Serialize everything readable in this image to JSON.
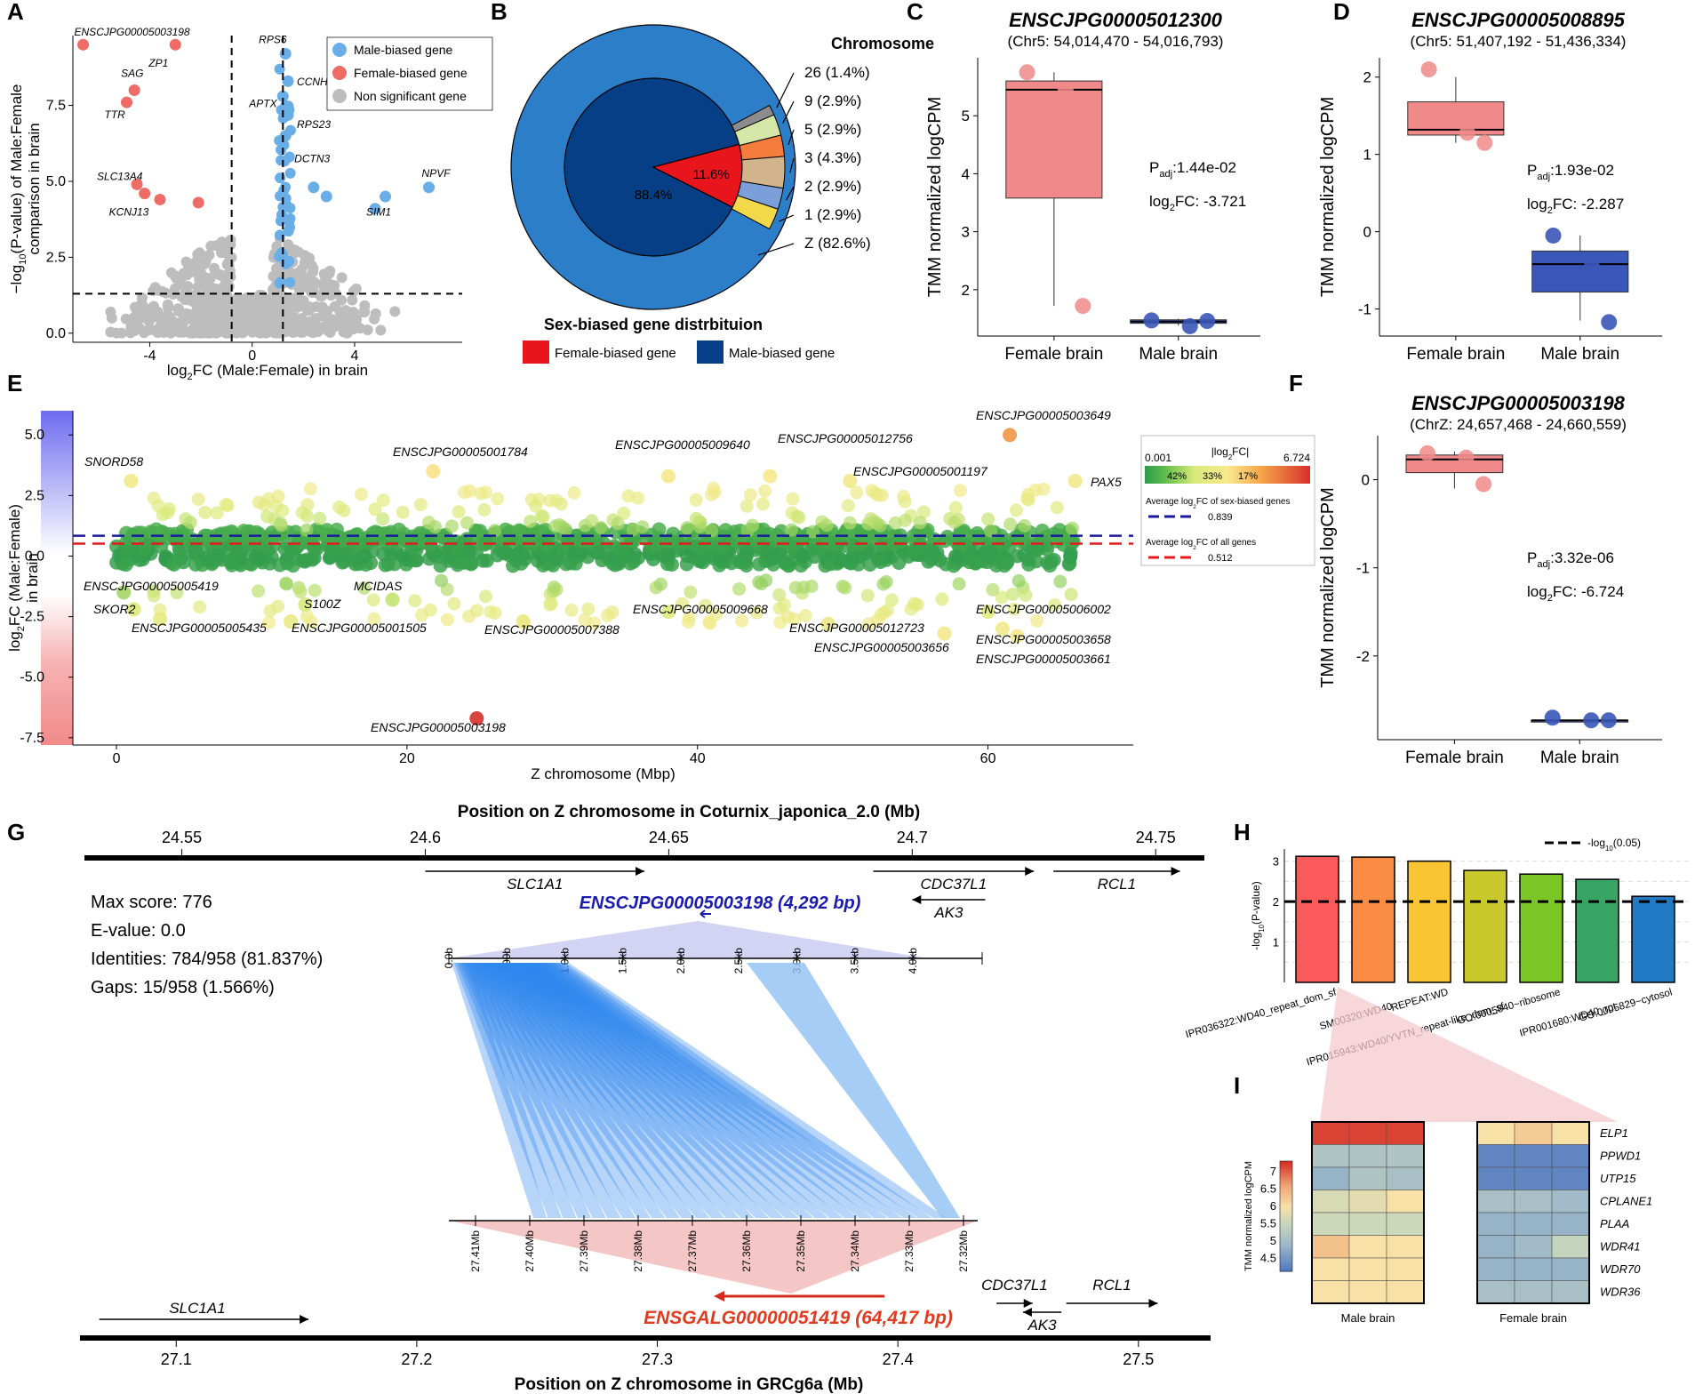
{
  "panel_labels": {
    "A": "A",
    "B": "B",
    "C": "C",
    "D": "D",
    "E": "E",
    "F": "F",
    "G": "G",
    "H": "H",
    "I": "I"
  },
  "chart_data": [
    {
      "panel": "A",
      "type": "scatter",
      "xlabel_parts": [
        "log",
        "2",
        "FC (Male:Female) in brain"
      ],
      "ylabel_line1_parts": [
        "−log",
        "10",
        "(P-value) of Male:Female"
      ],
      "ylabel_line2": "comparison in brain",
      "xlim": [
        -7,
        8.2
      ],
      "ylim": [
        -0.3,
        9.8
      ],
      "x_ticks": [
        -4,
        0,
        4
      ],
      "y_ticks": [
        0.0,
        2.5,
        5.0,
        7.5
      ],
      "y_tick_labels": [
        "0.0",
        "2.5",
        "5.0",
        "7.5"
      ],
      "vlines": [
        -0.8,
        1.2
      ],
      "hline": 1.3,
      "legend": [
        {
          "label": "Male-biased gene",
          "color": "#6aaee8"
        },
        {
          "label": "Female-biased gene",
          "color": "#ee6b66"
        },
        {
          "label": "Non significant gene",
          "color": "#bdbdbd"
        }
      ],
      "labeled_points": [
        {
          "label": "ENSCJPG00005003198",
          "x": -6.6,
          "y": 9.5,
          "group": "female"
        },
        {
          "label": "ZP1",
          "x": -3.0,
          "y": 9.5,
          "group": "female"
        },
        {
          "label": "SAG",
          "x": -4.6,
          "y": 8.0,
          "group": "female"
        },
        {
          "label": "TTR",
          "x": -4.9,
          "y": 7.6,
          "group": "female"
        },
        {
          "label": "SLC13A4",
          "x": -4.5,
          "y": 4.9,
          "group": "female"
        },
        {
          "label": "KCNJ13",
          "x": -4.2,
          "y": 4.6,
          "group": "female"
        },
        {
          "label": "RPS6",
          "x": 1.3,
          "y": 9.2,
          "group": "male"
        },
        {
          "label": "CCNH",
          "x": 1.4,
          "y": 8.3,
          "group": "male"
        },
        {
          "label": "APTX",
          "x": 1.2,
          "y": 7.8,
          "group": "male"
        },
        {
          "label": "RPS23",
          "x": 1.4,
          "y": 7.2,
          "group": "male"
        },
        {
          "label": "DCTN3",
          "x": 1.3,
          "y": 6.5,
          "group": "male"
        },
        {
          "label": "SIM1",
          "x": 4.8,
          "y": 4.1,
          "group": "male"
        },
        {
          "label": "NPVF",
          "x": 6.9,
          "y": 4.8,
          "group": "male"
        }
      ],
      "extra_female_points": [
        {
          "x": -2.1,
          "y": 4.3
        },
        {
          "x": -3.6,
          "y": 4.4
        }
      ],
      "extra_male_points": [
        {
          "x": 2.4,
          "y": 4.8
        },
        {
          "x": 2.9,
          "y": 4.5
        },
        {
          "x": 5.2,
          "y": 4.5
        }
      ]
    },
    {
      "panel": "B",
      "type": "pie",
      "title": "Sex-biased gene distrbituion",
      "legend_title": "Chromosome",
      "inner": [
        {
          "label": "Female-biased gene",
          "percent": 11.6,
          "color": "#e8161c"
        },
        {
          "label": "Male-biased gene",
          "percent": 88.4,
          "color": "#073f86"
        }
      ],
      "inner_labels": [
        "11.6%",
        "88.4%"
      ],
      "outer_total_color": "#2b7ec7",
      "outer_segments": [
        {
          "label": "26 (1.4%)",
          "percent": 1.4,
          "color": "#8c8c8c"
        },
        {
          "label": "9 (2.9%)",
          "percent": 2.9,
          "color": "#d5e6a8"
        },
        {
          "label": "5 (2.9%)",
          "percent": 2.9,
          "color": "#f47c3c"
        },
        {
          "label": "3 (4.3%)",
          "percent": 4.3,
          "color": "#d2b48c"
        },
        {
          "label": "2 (2.9%)",
          "percent": 2.9,
          "color": "#7b9fd9"
        },
        {
          "label": "1 (2.9%)",
          "percent": 2.9,
          "color": "#f2d94a"
        },
        {
          "label": "Z (82.6%)",
          "percent": 82.6,
          "color": "#2b7ec7"
        }
      ]
    },
    {
      "panel": "C",
      "type": "box",
      "title": "ENSCJPG00005012300",
      "subtitle": "(Chr5: 54,014,470 - 54,016,793)",
      "ylabel": "TMM normalized logCPM",
      "ylim": [
        1.2,
        6.0
      ],
      "y_ticks": [
        2,
        3,
        4,
        5
      ],
      "groups": [
        {
          "name": "Female brain",
          "color": "#f08a8a",
          "q1": 3.58,
          "median": 5.45,
          "q3": 5.6,
          "lo": 1.72,
          "hi": 5.75,
          "points": [
            5.75,
            5.45,
            1.72
          ]
        },
        {
          "name": "Male brain",
          "color": "#3a56b8",
          "q1": 1.42,
          "median": 1.45,
          "q3": 1.48,
          "lo": 1.38,
          "hi": 1.5,
          "points": [
            1.47,
            1.37,
            1.46
          ]
        }
      ],
      "padj_label": "P",
      "padj_sub": "adj",
      "padj_value": ":1.44e-02",
      "fc_label": "log",
      "fc_sub": "2",
      "fc_value": "FC: -3.721"
    },
    {
      "panel": "D",
      "type": "box",
      "title": "ENSCJPG00005008895",
      "subtitle": "(Chr5: 51,407,192 - 51,436,334)",
      "ylabel": "TMM normalized logCPM",
      "ylim": [
        -1.35,
        2.25
      ],
      "y_ticks": [
        -1,
        0,
        1,
        2
      ],
      "groups": [
        {
          "name": "Female brain",
          "color": "#f08a8a",
          "q1": 1.25,
          "median": 1.32,
          "q3": 1.68,
          "lo": 1.15,
          "hi": 2.0,
          "points": [
            2.1,
            1.28,
            1.15
          ]
        },
        {
          "name": "Male brain",
          "color": "#3a56b8",
          "q1": -0.78,
          "median": -0.42,
          "q3": -0.25,
          "lo": -1.15,
          "hi": -0.05,
          "points": [
            -0.05,
            -0.45,
            -1.17
          ]
        }
      ],
      "padj_label": "P",
      "padj_sub": "adj",
      "padj_value": ":1.93e-02",
      "fc_label": "log",
      "fc_sub": "2",
      "fc_value": "FC: -2.287"
    },
    {
      "panel": "E",
      "type": "scatter",
      "xlabel": "Z chromosome (Mbp)",
      "ylabel_parts": [
        "log",
        "2",
        "FC (Male:Female)"
      ],
      "ylabel_line2": "in brain",
      "xlim": [
        -3,
        70
      ],
      "ylim": [
        -7.8,
        6.0
      ],
      "x_ticks": [
        0,
        20,
        40,
        60
      ],
      "y_ticks": [
        5.0,
        2.5,
        0.0,
        -2.5,
        -5.0,
        -7.5
      ],
      "y_tick_labels": [
        "5.0",
        "2.5",
        "0.0",
        "-2.5",
        "-5.0",
        "-7.5"
      ],
      "hline_sex_biased": 0.839,
      "hline_all": 0.512,
      "colorbar": {
        "min": "0.001",
        "max": "6.724",
        "title": "|log",
        "title_sub": "2",
        "title_end": "FC|",
        "segments": [
          "42%",
          "33%",
          "17%"
        ]
      },
      "legend_lines": [
        {
          "label": "Average log",
          "sub": "2",
          "end": "FC of sex-biased genes",
          "value": "0.839",
          "color": "#1a1a9c"
        },
        {
          "label": "Average log",
          "sub": "2",
          "end": "FC of all genes",
          "value": "0.512",
          "color": "#e41a1c"
        }
      ],
      "labeled_points": [
        {
          "label": "SNORD58",
          "x": 1.0,
          "y": 3.1
        },
        {
          "label": "ENSCJPG00005001784",
          "x": 21.8,
          "y": 3.5
        },
        {
          "label": "ENSCJPG00005009640",
          "x": 38.0,
          "y": 3.3
        },
        {
          "label": "ENSCJPG00005012756",
          "x": 45.0,
          "y": 3.3
        },
        {
          "label": "ENSCJPG00005003649",
          "x": 61.5,
          "y": 5.0
        },
        {
          "label": "ENSCJPG00005001197",
          "x": 50.5,
          "y": 3.1
        },
        {
          "label": "PAX5",
          "x": 66.0,
          "y": 3.1
        },
        {
          "label": "ENSCJPG00005005419",
          "x": 0.5,
          "y": -1.5
        },
        {
          "label": "SKOR2",
          "x": 1.2,
          "y": -2.2
        },
        {
          "label": "S100Z",
          "x": 13.0,
          "y": -2.0
        },
        {
          "label": "MCIDAS",
          "x": 19.0,
          "y": -1.8
        },
        {
          "label": "ENSCJPG00005005435",
          "x": 3.0,
          "y": -2.6
        },
        {
          "label": "ENSCJPG00005001505",
          "x": 12.0,
          "y": -2.7
        },
        {
          "label": "ENSCJPG00005009668",
          "x": 38.0,
          "y": -2.3
        },
        {
          "label": "ENSCJPG00005007388",
          "x": 28.0,
          "y": -2.7
        },
        {
          "label": "ENSCJPG00005012723",
          "x": 49.0,
          "y": -2.8
        },
        {
          "label": "ENSCJPG00005006002",
          "x": 60.0,
          "y": -2.3
        },
        {
          "label": "ENSCJPG00005003658",
          "x": 61.0,
          "y": -3.0
        },
        {
          "label": "ENSCJPG00005003656",
          "x": 57.0,
          "y": -3.2
        },
        {
          "label": "ENSCJPG00005003661",
          "x": 62.0,
          "y": -3.3
        },
        {
          "label": "ENSCJPG00005003198",
          "x": 24.8,
          "y": -6.7
        }
      ]
    },
    {
      "panel": "F",
      "type": "box",
      "title": "ENSCJPG00005003198",
      "subtitle": "(ChrZ: 24,657,468 - 24,660,559)",
      "ylabel": "TMM normalized logCPM",
      "ylim": [
        -2.95,
        0.5
      ],
      "y_ticks": [
        -2,
        -1,
        0
      ],
      "groups": [
        {
          "name": "Female brain",
          "color": "#f08a8a",
          "q1": 0.08,
          "median": 0.23,
          "q3": 0.28,
          "lo": -0.1,
          "hi": 0.32,
          "points": [
            0.3,
            0.25,
            -0.05
          ]
        },
        {
          "name": "Male brain",
          "color": "#3a56b8",
          "q1": -2.73,
          "median": -2.73,
          "q3": -2.73,
          "lo": -2.73,
          "hi": -2.73,
          "points": [
            -2.7,
            -2.73,
            -2.73
          ]
        }
      ],
      "padj_label": "P",
      "padj_sub": "adj",
      "padj_value": ":3.32e-06",
      "fc_label": "log",
      "fc_sub": "2",
      "fc_value": "FC: -6.724"
    },
    {
      "panel": "G",
      "type": "synteny",
      "top_title": "Position on Z chromosome in Coturnix_japonica_2.0 (Mb)",
      "bottom_title": "Position on Z chromosome in GRCg6a (Mb)",
      "top_range": [
        24.53,
        24.76
      ],
      "top_ticks": [
        24.55,
        24.6,
        24.65,
        24.7,
        24.75
      ],
      "top_tick_labels": [
        "24.55",
        "24.6",
        "24.65",
        "24.7",
        "24.75"
      ],
      "top_genes": [
        {
          "name": "SLC1A1",
          "start": 24.6,
          "end": 24.645,
          "dir": 1
        },
        {
          "name": "CDC37L1",
          "start": 24.692,
          "end": 24.725,
          "dir": 1
        },
        {
          "name": "AK3",
          "start": 24.7,
          "end": 24.715,
          "dir": -1
        },
        {
          "name": "RCL1",
          "start": 24.729,
          "end": 24.755,
          "dir": 1
        }
      ],
      "bottom_range": [
        27.06,
        27.53
      ],
      "bottom_ticks": [
        27.1,
        27.2,
        27.3,
        27.4,
        27.5
      ],
      "bottom_tick_labels": [
        "27.1",
        "27.2",
        "27.3",
        "27.4",
        "27.5"
      ],
      "bottom_genes": [
        {
          "name": "SLC1A1",
          "start": 27.068,
          "end": 27.155,
          "dir": 1
        },
        {
          "name": "CDC37L1",
          "start": 27.441,
          "end": 27.456,
          "dir": 1
        },
        {
          "name": "AK3",
          "start": 27.452,
          "end": 27.468,
          "dir": -1
        },
        {
          "name": "RCL1",
          "start": 27.47,
          "end": 27.508,
          "dir": 1
        }
      ],
      "query_gene": "ENSCJPG00005003198 (4,292 bp)",
      "query_ticks": [
        "0.0b",
        "500b",
        "1.0kb",
        "1.5kb",
        "2.0kb",
        "2.5kb",
        "3.0kb",
        "3.5kb",
        "4.0kb"
      ],
      "query_max": 4292,
      "subject_gene": "ENSGALG00000051419 (64,417 bp)",
      "subject_ticks": [
        "27.41Mb",
        "27.40Mb",
        "27.39Mb",
        "27.38Mb",
        "27.37Mb",
        "27.36Mb",
        "27.35Mb",
        "27.34Mb",
        "27.33Mb",
        "27.32Mb"
      ],
      "stats": [
        "Max score: 776",
        "E-value: 0.0",
        "Identities: 784/958 (81.837%)",
        "Gaps: 15/958 (1.566%)"
      ]
    },
    {
      "panel": "H",
      "type": "bar",
      "ylabel_parts": [
        "-log",
        "10",
        "(P-value)"
      ],
      "ylim": [
        0,
        3.3
      ],
      "y_ticks": [
        1,
        2,
        3
      ],
      "threshold": 2.0,
      "threshold_label_parts": [
        "-log",
        "10",
        "(0.05)"
      ],
      "categories": [
        "IPR036322:WD40_repeat_dom_sf",
        "SM00320:WD40",
        "REPEAT:WD",
        "IPR015943:WD40/YVTN_repeat-like_dom_sf",
        "GO:0005840~ribosome",
        "IPR001680:WD40_rpt",
        "GO:0005829~cytosol"
      ],
      "values": [
        3.12,
        3.1,
        3.0,
        2.77,
        2.68,
        2.55,
        2.13
      ],
      "colors": [
        "#fb5a5a",
        "#fa8c45",
        "#f9c532",
        "#c9c92e",
        "#7cc627",
        "#39a564",
        "#2279c4"
      ]
    },
    {
      "panel": "I",
      "type": "heatmap",
      "row_labels": [
        "ELP1",
        "PPWD1",
        "UTP15",
        "CPLANE1",
        "PLAA",
        "WDR41",
        "WDR70",
        "WDR36"
      ],
      "group_labels": [
        "Male brain",
        "Female brain"
      ],
      "legend_title": "TMM normalized logCPM",
      "legend_ticks": [
        "7",
        "6.5",
        "6",
        "5.5",
        "5",
        "4.5"
      ],
      "scale_min": 4.2,
      "scale_max": 7.2,
      "male": [
        [
          7.1,
          7.1,
          7.1
        ],
        [
          5.2,
          5.2,
          5.2
        ],
        [
          4.9,
          5.2,
          5.1
        ],
        [
          5.7,
          5.8,
          6.0
        ],
        [
          5.6,
          5.6,
          5.6
        ],
        [
          6.3,
          6.0,
          6.0
        ],
        [
          6.0,
          6.0,
          6.0
        ],
        [
          6.0,
          6.0,
          6.0
        ]
      ],
      "female": [
        [
          6.0,
          6.2,
          6.0
        ],
        [
          4.4,
          4.4,
          4.4
        ],
        [
          4.4,
          4.4,
          4.4
        ],
        [
          5.1,
          5.1,
          5.0
        ],
        [
          4.9,
          4.9,
          4.9
        ],
        [
          4.9,
          5.0,
          5.5
        ],
        [
          4.9,
          4.9,
          4.9
        ],
        [
          5.1,
          5.1,
          5.1
        ]
      ]
    }
  ]
}
